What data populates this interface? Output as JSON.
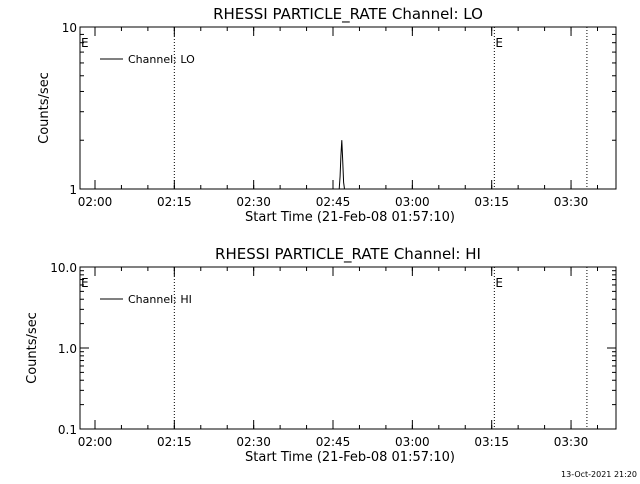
{
  "chart_data": [
    {
      "type": "line",
      "title": "RHESSI PARTICLE_RATE Channel: LO",
      "xlabel": "Start Time (21-Feb-08 01:57:10)",
      "ylabel": "Counts/sec",
      "yscale": "log",
      "xlim": [
        "01:57:10",
        "03:38:30"
      ],
      "ylim": [
        1,
        10
      ],
      "x_ticks": [
        "02:00",
        "02:15",
        "02:30",
        "02:45",
        "03:00",
        "03:15",
        "03:30"
      ],
      "y_ticks": [
        "1",
        "10"
      ],
      "grid": false,
      "legend_position": "top-left",
      "series": [
        {
          "name": "Channel: LO",
          "color": "#000000",
          "x": [
            "02:46:10",
            "02:46:20",
            "02:46:30",
            "02:46:40",
            "02:46:50",
            "02:47:00",
            "02:47:10"
          ],
          "y": [
            1,
            1.2,
            1.6,
            2.0,
            1.5,
            1.1,
            1
          ]
        }
      ],
      "event_markers": [
        {
          "time": "01:57:10",
          "label": "E"
        },
        {
          "time": "02:15:00",
          "label": ""
        },
        {
          "time": "03:15:30",
          "label": "E"
        },
        {
          "time": "03:33:00",
          "label": ""
        }
      ]
    },
    {
      "type": "line",
      "title": "RHESSI PARTICLE_RATE Channel: HI",
      "xlabel": "Start Time (21-Feb-08 01:57:10)",
      "ylabel": "Counts/sec",
      "yscale": "log",
      "xlim": [
        "01:57:10",
        "03:38:30"
      ],
      "ylim": [
        0.1,
        10.0
      ],
      "x_ticks": [
        "02:00",
        "02:15",
        "02:30",
        "02:45",
        "03:00",
        "03:15",
        "03:30"
      ],
      "y_ticks": [
        "0.1",
        "1.0",
        "10.0"
      ],
      "grid": false,
      "legend_position": "top-left",
      "series": [
        {
          "name": "Channel: HI",
          "color": "#000000",
          "x": [],
          "y": []
        }
      ],
      "event_markers": [
        {
          "time": "01:57:10",
          "label": "E"
        },
        {
          "time": "02:15:00",
          "label": ""
        },
        {
          "time": "03:15:30",
          "label": "E"
        },
        {
          "time": "03:33:00",
          "label": ""
        }
      ]
    }
  ],
  "footer": {
    "timestamp": "13-Oct-2021 21:20"
  }
}
